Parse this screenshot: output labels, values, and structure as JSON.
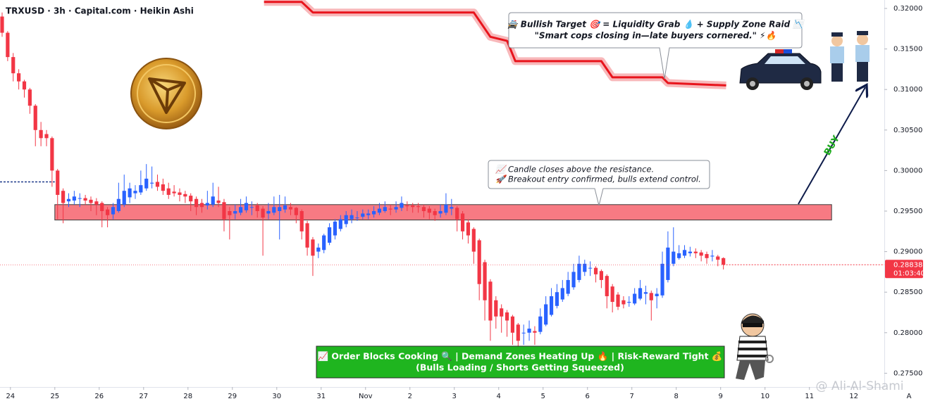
{
  "chart_data": {
    "type": "candlestick",
    "title": "TRXUSD · 3h · Capital.com · Heikin Ashi",
    "up_color": "#2962ff",
    "down_color": "#f23645",
    "xlim": [
      -0.381,
      159
    ],
    "xticks": [
      {
        "value": 1.5,
        "label": "24"
      },
      {
        "value": 9.5,
        "label": "25"
      },
      {
        "value": 17.5,
        "label": "26"
      },
      {
        "value": 25.5,
        "label": "27"
      },
      {
        "value": 33.5,
        "label": "28"
      },
      {
        "value": 41.5,
        "label": "29"
      },
      {
        "value": 49.5,
        "label": "30"
      },
      {
        "value": 57.5,
        "label": "31"
      },
      {
        "value": 65.5,
        "label": "Nov"
      },
      {
        "value": 73.5,
        "label": "2"
      },
      {
        "value": 81.5,
        "label": "3"
      },
      {
        "value": 89.5,
        "label": "4"
      },
      {
        "value": 97.5,
        "label": "5"
      },
      {
        "value": 105.5,
        "label": "6"
      },
      {
        "value": 113.5,
        "label": "7"
      },
      {
        "value": 121.5,
        "label": "8"
      },
      {
        "value": 129.5,
        "label": "9"
      },
      {
        "value": 137.5,
        "label": "10"
      },
      {
        "value": 145.5,
        "label": "11"
      },
      {
        "value": 153.5,
        "label": "12"
      }
    ],
    "ylim": [
      0.2733,
      0.32104
    ],
    "yticks": [
      {
        "value": 0.275,
        "label": "0.27500"
      },
      {
        "value": 0.28,
        "label": "0.28000"
      },
      {
        "value": 0.285,
        "label": "0.28500"
      },
      {
        "value": 0.29,
        "label": "0.29000"
      },
      {
        "value": 0.295,
        "label": "0.29500"
      },
      {
        "value": 0.3,
        "label": "0.30000"
      },
      {
        "value": 0.305,
        "label": "0.30500"
      },
      {
        "value": 0.31,
        "label": "0.31000"
      },
      {
        "value": 0.315,
        "label": "0.31500"
      },
      {
        "value": 0.32,
        "label": "0.32000"
      }
    ],
    "ohlc": [
      [
        0.319,
        0.3195,
        0.3165,
        0.317
      ],
      [
        0.317,
        0.3172,
        0.3135,
        0.314
      ],
      [
        0.314,
        0.3145,
        0.311,
        0.312
      ],
      [
        0.312,
        0.3125,
        0.31,
        0.311
      ],
      [
        0.311,
        0.3112,
        0.309,
        0.31
      ],
      [
        0.31,
        0.3102,
        0.307,
        0.308
      ],
      [
        0.308,
        0.3082,
        0.303,
        0.305
      ],
      [
        0.305,
        0.306,
        0.303,
        0.304
      ],
      [
        0.3045,
        0.305,
        0.303,
        0.304
      ],
      [
        0.304,
        0.3042,
        0.298,
        0.3
      ],
      [
        0.3,
        0.3002,
        0.294,
        0.297
      ],
      [
        0.2975,
        0.2978,
        0.2935,
        0.296
      ],
      [
        0.2962,
        0.2972,
        0.2955,
        0.2965
      ],
      [
        0.2963,
        0.2975,
        0.2958,
        0.2968
      ],
      [
        0.2966,
        0.2972,
        0.2955,
        0.2966
      ],
      [
        0.2966,
        0.297,
        0.2958,
        0.2963
      ],
      [
        0.2964,
        0.2968,
        0.295,
        0.296
      ],
      [
        0.2962,
        0.2966,
        0.2945,
        0.2958
      ],
      [
        0.296,
        0.2962,
        0.293,
        0.295
      ],
      [
        0.2952,
        0.2955,
        0.293,
        0.2945
      ],
      [
        0.2946,
        0.296,
        0.294,
        0.2955
      ],
      [
        0.295,
        0.2985,
        0.2948,
        0.2965
      ],
      [
        0.2958,
        0.2995,
        0.2955,
        0.2975
      ],
      [
        0.2967,
        0.2985,
        0.296,
        0.2978
      ],
      [
        0.2972,
        0.2982,
        0.2965,
        0.2975
      ],
      [
        0.2973,
        0.3,
        0.297,
        0.2982
      ],
      [
        0.2978,
        0.3008,
        0.2975,
        0.299
      ],
      [
        0.2984,
        0.3005,
        0.2978,
        0.2985
      ],
      [
        0.2986,
        0.2995,
        0.2975,
        0.298
      ],
      [
        0.2983,
        0.299,
        0.297,
        0.2975
      ],
      [
        0.2978,
        0.2985,
        0.2965,
        0.297
      ],
      [
        0.2974,
        0.2982,
        0.2968,
        0.2972
      ],
      [
        0.2973,
        0.2978,
        0.2962,
        0.297
      ],
      [
        0.2971,
        0.2975,
        0.296,
        0.2968
      ],
      [
        0.2969,
        0.2972,
        0.295,
        0.2962
      ],
      [
        0.2965,
        0.2968,
        0.2945,
        0.2955
      ],
      [
        0.296,
        0.2965,
        0.2948,
        0.2955
      ],
      [
        0.2957,
        0.2975,
        0.2952,
        0.296
      ],
      [
        0.2958,
        0.2985,
        0.2955,
        0.2968
      ],
      [
        0.2963,
        0.298,
        0.2955,
        0.296
      ],
      [
        0.2961,
        0.2965,
        0.2925,
        0.294
      ],
      [
        0.295,
        0.2955,
        0.2915,
        0.2945
      ],
      [
        0.2947,
        0.2958,
        0.294,
        0.295
      ],
      [
        0.2948,
        0.2965,
        0.2945,
        0.2955
      ],
      [
        0.2951,
        0.2968,
        0.2948,
        0.296
      ],
      [
        0.2955,
        0.2962,
        0.2945,
        0.2955
      ],
      [
        0.2957,
        0.296,
        0.2942,
        0.295
      ],
      [
        0.2953,
        0.2956,
        0.2895,
        0.2942
      ],
      [
        0.2947,
        0.296,
        0.294,
        0.295
      ],
      [
        0.2948,
        0.2968,
        0.2945,
        0.2955
      ],
      [
        0.295,
        0.297,
        0.2915,
        0.2955
      ],
      [
        0.2952,
        0.2968,
        0.2948,
        0.2957
      ],
      [
        0.2955,
        0.296,
        0.2945,
        0.2952
      ],
      [
        0.2954,
        0.2955,
        0.2935,
        0.2945
      ],
      [
        0.295,
        0.2952,
        0.2915,
        0.2925
      ],
      [
        0.2935,
        0.2938,
        0.2895,
        0.2905
      ],
      [
        0.2915,
        0.2918,
        0.287,
        0.2895
      ],
      [
        0.29,
        0.291,
        0.2892,
        0.2905
      ],
      [
        0.2902,
        0.2922,
        0.2898,
        0.292
      ],
      [
        0.2911,
        0.2935,
        0.2908,
        0.293
      ],
      [
        0.292,
        0.294,
        0.2915,
        0.2937
      ],
      [
        0.2928,
        0.2945,
        0.2925,
        0.294
      ],
      [
        0.2934,
        0.295,
        0.293,
        0.2945
      ],
      [
        0.294,
        0.2952,
        0.2935,
        0.2945
      ],
      [
        0.2942,
        0.295,
        0.2938,
        0.2942
      ],
      [
        0.2943,
        0.2952,
        0.294,
        0.2947
      ],
      [
        0.2945,
        0.2952,
        0.294,
        0.2947
      ],
      [
        0.2946,
        0.2956,
        0.2942,
        0.295
      ],
      [
        0.2948,
        0.296,
        0.2945,
        0.2953
      ],
      [
        0.295,
        0.2962,
        0.2948,
        0.2955
      ],
      [
        0.2953,
        0.2958,
        0.2945,
        0.2952
      ],
      [
        0.2952,
        0.2962,
        0.2948,
        0.2955
      ],
      [
        0.2954,
        0.2968,
        0.295,
        0.296
      ],
      [
        0.2957,
        0.2962,
        0.295,
        0.2956
      ],
      [
        0.2957,
        0.296,
        0.2948,
        0.2955
      ],
      [
        0.2956,
        0.296,
        0.2948,
        0.2955
      ],
      [
        0.2955,
        0.2958,
        0.2942,
        0.295
      ],
      [
        0.2953,
        0.2956,
        0.294,
        0.2948
      ],
      [
        0.295,
        0.2953,
        0.2938,
        0.2945
      ],
      [
        0.2947,
        0.2958,
        0.2942,
        0.295
      ],
      [
        0.2948,
        0.2972,
        0.2945,
        0.2958
      ],
      [
        0.2953,
        0.2965,
        0.2945,
        0.2955
      ],
      [
        0.2954,
        0.2956,
        0.2925,
        0.294
      ],
      [
        0.2947,
        0.295,
        0.2915,
        0.2925
      ],
      [
        0.2936,
        0.294,
        0.291,
        0.292
      ],
      [
        0.2928,
        0.293,
        0.2885,
        0.29
      ],
      [
        0.2914,
        0.2916,
        0.284,
        0.286
      ],
      [
        0.2887,
        0.289,
        0.2815,
        0.284
      ],
      [
        0.2863,
        0.2866,
        0.279,
        0.2815
      ],
      [
        0.284,
        0.2845,
        0.2805,
        0.282
      ],
      [
        0.283,
        0.2835,
        0.28,
        0.282
      ],
      [
        0.2825,
        0.2828,
        0.2795,
        0.2815
      ],
      [
        0.282,
        0.2822,
        0.2785,
        0.28
      ],
      [
        0.281,
        0.2812,
        0.2775,
        0.279
      ],
      [
        0.28,
        0.281,
        0.2785,
        0.28
      ],
      [
        0.28,
        0.2815,
        0.279,
        0.2805
      ],
      [
        0.2802,
        0.2808,
        0.2785,
        0.28
      ],
      [
        0.2801,
        0.283,
        0.2798,
        0.282
      ],
      [
        0.281,
        0.2845,
        0.2808,
        0.2835
      ],
      [
        0.2822,
        0.2855,
        0.282,
        0.2845
      ],
      [
        0.2833,
        0.286,
        0.283,
        0.285
      ],
      [
        0.2841,
        0.2865,
        0.2838,
        0.2855
      ],
      [
        0.2848,
        0.2875,
        0.2845,
        0.2865
      ],
      [
        0.2856,
        0.2885,
        0.2853,
        0.2875
      ],
      [
        0.2865,
        0.2895,
        0.2862,
        0.2885
      ],
      [
        0.2875,
        0.289,
        0.287,
        0.2885
      ],
      [
        0.288,
        0.2888,
        0.287,
        0.288
      ],
      [
        0.288,
        0.2882,
        0.2862,
        0.2872
      ],
      [
        0.2876,
        0.2878,
        0.2855,
        0.2865
      ],
      [
        0.287,
        0.2872,
        0.283,
        0.2845
      ],
      [
        0.2857,
        0.286,
        0.2825,
        0.2838
      ],
      [
        0.2847,
        0.285,
        0.2828,
        0.2832
      ],
      [
        0.284,
        0.2845,
        0.283,
        0.2835
      ],
      [
        0.2837,
        0.2845,
        0.2832,
        0.2838
      ],
      [
        0.2836,
        0.2855,
        0.2834,
        0.2848
      ],
      [
        0.2842,
        0.2865,
        0.284,
        0.2855
      ],
      [
        0.2848,
        0.2858,
        0.2835,
        0.285
      ],
      [
        0.2849,
        0.2852,
        0.2815,
        0.284
      ],
      [
        0.2845,
        0.2855,
        0.283,
        0.2848
      ],
      [
        0.2846,
        0.29,
        0.2843,
        0.2885
      ],
      [
        0.2865,
        0.2925,
        0.2862,
        0.2905
      ],
      [
        0.2885,
        0.293,
        0.2882,
        0.29
      ],
      [
        0.2892,
        0.2908,
        0.289,
        0.2898
      ],
      [
        0.2895,
        0.2908,
        0.2892,
        0.2902
      ],
      [
        0.2898,
        0.2906,
        0.2894,
        0.29
      ],
      [
        0.29,
        0.2904,
        0.2892,
        0.2898
      ],
      [
        0.2899,
        0.2902,
        0.2888,
        0.2895
      ],
      [
        0.2897,
        0.29,
        0.2885,
        0.2892
      ],
      [
        0.2894,
        0.2902,
        0.2888,
        0.2895
      ],
      [
        0.2894,
        0.2896,
        0.2882,
        0.289
      ],
      [
        0.2892,
        0.2893,
        0.2878,
        0.28838
      ]
    ],
    "zone": {
      "x": [
        9.5,
        149.5
      ],
      "y": [
        0.2939,
        0.2958
      ],
      "color": "#f77a83"
    },
    "level_line": {
      "value": 0.2986,
      "color": "#1e3a8a"
    },
    "trail": {
      "x": [
        47.2,
        54,
        56,
        85,
        88,
        91,
        92.5,
        108,
        110,
        119,
        120,
        130.5
      ],
      "values": [
        0.3208,
        0.3208,
        0.3195,
        0.3195,
        0.3165,
        0.316,
        0.3135,
        0.3135,
        0.3115,
        0.3115,
        0.3108,
        0.3105
      ],
      "color": "#e8141c"
    },
    "last_price": 0.28838,
    "countdown": "01:03:40",
    "callouts": [
      {
        "lines": [
          "🚔 Bullish Target 🎯 = Liquidity Grab 💧 + Supply Zone Raid 📉",
          "\"Smart cops closing in—late buyers cornered.\" ⚡🔥"
        ]
      },
      {
        "lines": [
          "📈 Candle closes above the resistance.",
          "🚀 Breakout entry confirmed, bulls extend control."
        ]
      }
    ],
    "bottom_note": [
      "📈 Order Blocks Cooking 🔍 | Demand Zones Heating Up 🔥 | Risk-Reward Tight 💰",
      "(Bulls Loading / Shorts Getting Squeezed)"
    ],
    "buy_label": "BUY",
    "watermark": "@ Ali-Al-Shami",
    "axis_button": "A"
  }
}
